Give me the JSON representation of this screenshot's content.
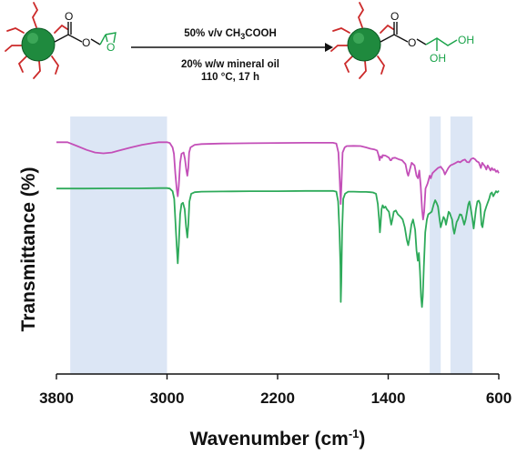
{
  "reaction": {
    "condition_top_prefix": "50% v/v CH",
    "condition_top_sub1": "3",
    "condition_top_suffix": "COOH",
    "condition_bottom_1": "20% w/w mineral oil",
    "condition_bottom_2": "110 °C, 17 h",
    "reactant_ring_atom": "O",
    "reactant_carbonyl_o": "O",
    "reactant_ester_o": "O",
    "product_carbonyl_o": "O",
    "product_ester_o": "O",
    "product_oh_1": "OH",
    "product_oh_2": "OH",
    "colors": {
      "particle": "#1f8a3e",
      "arms": "#cc2a2a",
      "epoxide_diol": "#1aa34a"
    }
  },
  "chart_data": {
    "type": "line",
    "xlabel": "Wavenumber (cm",
    "xlabel_sup": "-1",
    "xlabel_close": ")",
    "ylabel": "Transmittance (%)",
    "xlim": [
      3800,
      600
    ],
    "x_reversed": true,
    "ylim": [
      0,
      1
    ],
    "y_tick_labels": false,
    "x_ticks": [
      3800,
      3000,
      2200,
      1400,
      600
    ],
    "x_tick_labels": [
      "3800",
      "3000",
      "2200",
      "1400",
      "600"
    ],
    "shaded_regions": [
      [
        3700,
        3000
      ],
      [
        1100,
        1020
      ],
      [
        950,
        790
      ]
    ],
    "shade_color": "#dce6f5",
    "series": [
      {
        "color": "#c34fb8",
        "points": [
          [
            3800,
            0.9
          ],
          [
            3720,
            0.9
          ],
          [
            3650,
            0.885
          ],
          [
            3580,
            0.87
          ],
          [
            3520,
            0.86
          ],
          [
            3460,
            0.857
          ],
          [
            3400,
            0.86
          ],
          [
            3330,
            0.87
          ],
          [
            3260,
            0.88
          ],
          [
            3180,
            0.89
          ],
          [
            3100,
            0.897
          ],
          [
            3060,
            0.9
          ],
          [
            3030,
            0.9
          ],
          [
            3000,
            0.9
          ],
          [
            2980,
            0.897
          ],
          [
            2960,
            0.88
          ],
          [
            2950,
            0.855
          ],
          [
            2940,
            0.78
          ],
          [
            2930,
            0.72
          ],
          [
            2922,
            0.69
          ],
          [
            2915,
            0.73
          ],
          [
            2905,
            0.82
          ],
          [
            2895,
            0.855
          ],
          [
            2880,
            0.86
          ],
          [
            2870,
            0.835
          ],
          [
            2860,
            0.79
          ],
          [
            2853,
            0.77
          ],
          [
            2846,
            0.8
          ],
          [
            2840,
            0.86
          ],
          [
            2830,
            0.88
          ],
          [
            2800,
            0.89
          ],
          [
            2750,
            0.893
          ],
          [
            2600,
            0.895
          ],
          [
            2400,
            0.896
          ],
          [
            2200,
            0.897
          ],
          [
            2000,
            0.898
          ],
          [
            1800,
            0.898
          ],
          [
            1775,
            0.895
          ],
          [
            1760,
            0.86
          ],
          [
            1750,
            0.75
          ],
          [
            1744,
            0.66
          ],
          [
            1738,
            0.74
          ],
          [
            1730,
            0.86
          ],
          [
            1715,
            0.88
          ],
          [
            1700,
            0.885
          ],
          [
            1650,
            0.886
          ],
          [
            1600,
            0.885
          ],
          [
            1560,
            0.88
          ],
          [
            1530,
            0.875
          ],
          [
            1500,
            0.872
          ],
          [
            1480,
            0.868
          ],
          [
            1470,
            0.85
          ],
          [
            1462,
            0.83
          ],
          [
            1455,
            0.845
          ],
          [
            1445,
            0.84
          ],
          [
            1440,
            0.85
          ],
          [
            1420,
            0.848
          ],
          [
            1395,
            0.84
          ],
          [
            1385,
            0.83
          ],
          [
            1378,
            0.83
          ],
          [
            1370,
            0.838
          ],
          [
            1350,
            0.84
          ],
          [
            1320,
            0.833
          ],
          [
            1300,
            0.83
          ],
          [
            1275,
            0.815
          ],
          [
            1262,
            0.78
          ],
          [
            1255,
            0.77
          ],
          [
            1245,
            0.79
          ],
          [
            1230,
            0.82
          ],
          [
            1210,
            0.81
          ],
          [
            1195,
            0.77
          ],
          [
            1185,
            0.76
          ],
          [
            1175,
            0.79
          ],
          [
            1165,
            0.73
          ],
          [
            1155,
            0.64
          ],
          [
            1148,
            0.6
          ],
          [
            1140,
            0.63
          ],
          [
            1130,
            0.72
          ],
          [
            1115,
            0.74
          ],
          [
            1100,
            0.77
          ],
          [
            1092,
            0.76
          ],
          [
            1080,
            0.78
          ],
          [
            1060,
            0.79
          ],
          [
            1040,
            0.8
          ],
          [
            1020,
            0.805
          ],
          [
            1000,
            0.79
          ],
          [
            990,
            0.775
          ],
          [
            980,
            0.785
          ],
          [
            965,
            0.8
          ],
          [
            950,
            0.81
          ],
          [
            930,
            0.815
          ],
          [
            910,
            0.82
          ],
          [
            895,
            0.825
          ],
          [
            880,
            0.822
          ],
          [
            860,
            0.83
          ],
          [
            845,
            0.833
          ],
          [
            830,
            0.823
          ],
          [
            815,
            0.822
          ],
          [
            800,
            0.835
          ],
          [
            785,
            0.838
          ],
          [
            770,
            0.833
          ],
          [
            760,
            0.826
          ],
          [
            745,
            0.822
          ],
          [
            730,
            0.8
          ],
          [
            720,
            0.82
          ],
          [
            700,
            0.806
          ],
          [
            690,
            0.794
          ],
          [
            680,
            0.81
          ],
          [
            670,
            0.8
          ],
          [
            660,
            0.79
          ],
          [
            650,
            0.8
          ],
          [
            640,
            0.792
          ],
          [
            630,
            0.795
          ],
          [
            620,
            0.785
          ],
          [
            610,
            0.79
          ],
          [
            600,
            0.78
          ]
        ]
      },
      {
        "color": "#2eaa5a",
        "points": [
          [
            3800,
            0.72
          ],
          [
            3600,
            0.72
          ],
          [
            3400,
            0.721
          ],
          [
            3200,
            0.721
          ],
          [
            3050,
            0.722
          ],
          [
            3000,
            0.722
          ],
          [
            2980,
            0.72
          ],
          [
            2960,
            0.71
          ],
          [
            2948,
            0.68
          ],
          [
            2940,
            0.6
          ],
          [
            2930,
            0.5
          ],
          [
            2922,
            0.43
          ],
          [
            2915,
            0.5
          ],
          [
            2905,
            0.62
          ],
          [
            2895,
            0.66
          ],
          [
            2885,
            0.665
          ],
          [
            2872,
            0.64
          ],
          [
            2862,
            0.57
          ],
          [
            2853,
            0.53
          ],
          [
            2846,
            0.58
          ],
          [
            2838,
            0.67
          ],
          [
            2825,
            0.7
          ],
          [
            2800,
            0.706
          ],
          [
            2750,
            0.708
          ],
          [
            2600,
            0.709
          ],
          [
            2400,
            0.71
          ],
          [
            2200,
            0.71
          ],
          [
            2000,
            0.711
          ],
          [
            1800,
            0.711
          ],
          [
            1775,
            0.708
          ],
          [
            1762,
            0.67
          ],
          [
            1752,
            0.55
          ],
          [
            1746,
            0.42
          ],
          [
            1743,
            0.28
          ],
          [
            1739,
            0.36
          ],
          [
            1733,
            0.56
          ],
          [
            1725,
            0.68
          ],
          [
            1712,
            0.7
          ],
          [
            1690,
            0.708
          ],
          [
            1650,
            0.708
          ],
          [
            1600,
            0.707
          ],
          [
            1560,
            0.707
          ],
          [
            1530,
            0.706
          ],
          [
            1510,
            0.705
          ],
          [
            1488,
            0.7
          ],
          [
            1475,
            0.66
          ],
          [
            1466,
            0.6
          ],
          [
            1460,
            0.55
          ],
          [
            1455,
            0.58
          ],
          [
            1448,
            0.64
          ],
          [
            1440,
            0.655
          ],
          [
            1430,
            0.645
          ],
          [
            1420,
            0.65
          ],
          [
            1410,
            0.64
          ],
          [
            1395,
            0.63
          ],
          [
            1385,
            0.6
          ],
          [
            1378,
            0.58
          ],
          [
            1370,
            0.6
          ],
          [
            1360,
            0.63
          ],
          [
            1345,
            0.635
          ],
          [
            1330,
            0.62
          ],
          [
            1310,
            0.61
          ],
          [
            1295,
            0.6
          ],
          [
            1280,
            0.57
          ],
          [
            1265,
            0.52
          ],
          [
            1255,
            0.5
          ],
          [
            1245,
            0.53
          ],
          [
            1232,
            0.58
          ],
          [
            1220,
            0.6
          ],
          [
            1205,
            0.56
          ],
          [
            1195,
            0.48
          ],
          [
            1186,
            0.44
          ],
          [
            1178,
            0.47
          ],
          [
            1170,
            0.4
          ],
          [
            1162,
            0.3
          ],
          [
            1156,
            0.26
          ],
          [
            1150,
            0.3
          ],
          [
            1142,
            0.42
          ],
          [
            1132,
            0.55
          ],
          [
            1120,
            0.6
          ],
          [
            1110,
            0.62
          ],
          [
            1098,
            0.625
          ],
          [
            1085,
            0.63
          ],
          [
            1070,
            0.66
          ],
          [
            1060,
            0.675
          ],
          [
            1050,
            0.664
          ],
          [
            1040,
            0.65
          ],
          [
            1028,
            0.6
          ],
          [
            1020,
            0.57
          ],
          [
            1010,
            0.59
          ],
          [
            1000,
            0.61
          ],
          [
            990,
            0.6
          ],
          [
            982,
            0.58
          ],
          [
            974,
            0.6
          ],
          [
            963,
            0.63
          ],
          [
            955,
            0.625
          ],
          [
            945,
            0.61
          ],
          [
            938,
            0.6
          ],
          [
            930,
            0.565
          ],
          [
            922,
            0.545
          ],
          [
            914,
            0.565
          ],
          [
            905,
            0.59
          ],
          [
            895,
            0.6
          ],
          [
            882,
            0.62
          ],
          [
            870,
            0.618
          ],
          [
            860,
            0.6
          ],
          [
            850,
            0.58
          ],
          [
            840,
            0.6
          ],
          [
            830,
            0.63
          ],
          [
            820,
            0.66
          ],
          [
            812,
            0.67
          ],
          [
            802,
            0.64
          ],
          [
            790,
            0.6
          ],
          [
            782,
            0.565
          ],
          [
            774,
            0.6
          ],
          [
            765,
            0.64
          ],
          [
            755,
            0.67
          ],
          [
            745,
            0.673
          ],
          [
            735,
            0.66
          ],
          [
            725,
            0.58
          ],
          [
            718,
            0.57
          ],
          [
            710,
            0.6
          ],
          [
            702,
            0.63
          ],
          [
            690,
            0.65
          ],
          [
            680,
            0.665
          ],
          [
            670,
            0.68
          ],
          [
            660,
            0.7
          ],
          [
            650,
            0.705
          ],
          [
            640,
            0.69
          ],
          [
            630,
            0.7
          ],
          [
            620,
            0.71
          ],
          [
            610,
            0.705
          ],
          [
            600,
            0.712
          ]
        ]
      }
    ]
  }
}
